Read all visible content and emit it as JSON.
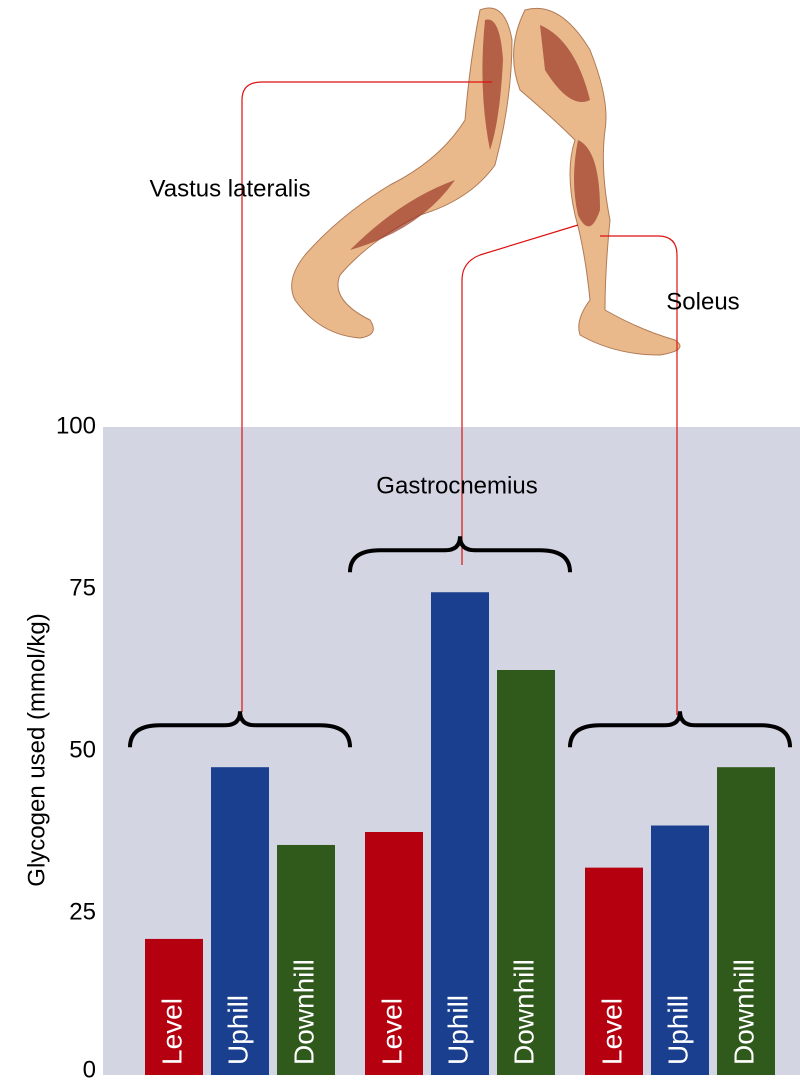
{
  "chart_data": {
    "type": "bar",
    "y_label": "Glycogen used (mmol/kg)",
    "categories": [
      "Vastus lateralis",
      "Gastrocnemius",
      "Soleus"
    ],
    "series": [
      {
        "name": "Level",
        "color": "#b5000f",
        "values": [
          21,
          37.5,
          32
        ]
      },
      {
        "name": "Uphill",
        "color": "#1a3f8f",
        "values": [
          47.5,
          74.5,
          38.5
        ]
      },
      {
        "name": "Downhill",
        "color": "#2f5a1c",
        "values": [
          35.5,
          62.5,
          47.5
        ]
      }
    ],
    "ylim": [
      0,
      100
    ],
    "yticks": [
      0,
      25,
      50,
      75,
      100
    ],
    "grid": false
  }
}
